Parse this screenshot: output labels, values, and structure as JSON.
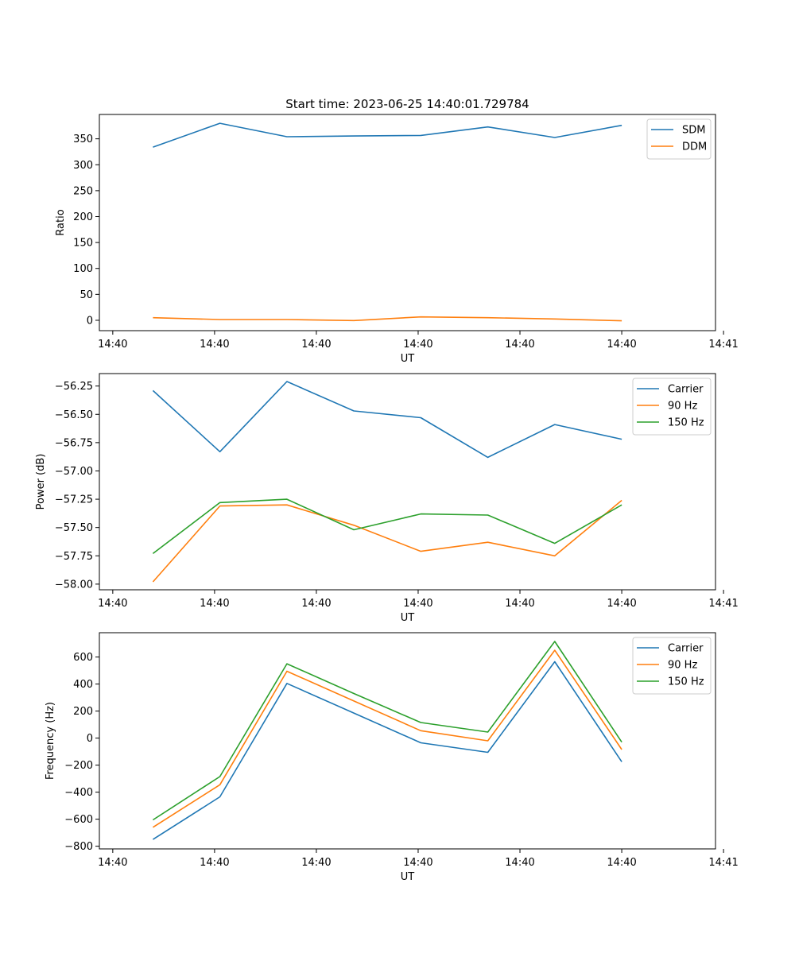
{
  "colors": {
    "blue": "#1f77b4",
    "orange": "#ff7f0e",
    "green": "#2ca02c"
  },
  "chart_data": [
    {
      "type": "line",
      "title": "Start time: 2023-06-25 14:40:01.729784",
      "xlabel": "UT",
      "ylabel": "Ratio",
      "x": [
        0.7,
        1.2,
        1.7,
        2.2,
        2.7,
        3.2,
        3.7,
        4.2
      ],
      "xlim": [
        0.3,
        4.9
      ],
      "xticks": [
        0.4,
        1.16,
        1.92,
        2.68,
        3.44,
        4.2,
        4.96
      ],
      "xtick_labels": [
        "14:40",
        "14:40",
        "14:40",
        "14:40",
        "14:40",
        "14:40",
        "14:41"
      ],
      "ylim": [
        -20,
        397
      ],
      "yticks": [
        0,
        50,
        100,
        150,
        200,
        250,
        300,
        350
      ],
      "legend_position": "top-right",
      "grid": false,
      "series": [
        {
          "name": "SDM",
          "color": "#1f77b4",
          "values": [
            334,
            380,
            354,
            355.5,
            356.5,
            373,
            352.5,
            376
          ]
        },
        {
          "name": "DDM",
          "color": "#ff7f0e",
          "values": [
            5,
            1.5,
            1.5,
            -0.5,
            6.5,
            5,
            2.5,
            -1
          ]
        }
      ]
    },
    {
      "type": "line",
      "title": "",
      "xlabel": "UT",
      "ylabel": "Power (dB)",
      "x": [
        0.7,
        1.2,
        1.7,
        2.2,
        2.7,
        3.2,
        3.7,
        4.2
      ],
      "xlim": [
        0.3,
        4.9
      ],
      "xticks": [
        0.4,
        1.16,
        1.92,
        2.68,
        3.44,
        4.2,
        4.96
      ],
      "xtick_labels": [
        "14:40",
        "14:40",
        "14:40",
        "14:40",
        "14:40",
        "14:40",
        "14:41"
      ],
      "ylim": [
        -58.05,
        -56.14
      ],
      "yticks": [
        -58.0,
        -57.75,
        -57.5,
        -57.25,
        -57.0,
        -56.75,
        -56.5,
        -56.25
      ],
      "ytick_labels": [
        "−58.00",
        "−57.75",
        "−57.50",
        "−57.25",
        "−57.00",
        "−56.75",
        "−56.50",
        "−56.25"
      ],
      "legend_position": "top-right",
      "grid": false,
      "series": [
        {
          "name": "Carrier",
          "color": "#1f77b4",
          "values": [
            -56.29,
            -56.83,
            -56.21,
            -56.47,
            -56.53,
            -56.88,
            -56.59,
            -56.72
          ]
        },
        {
          "name": "90 Hz",
          "color": "#ff7f0e",
          "values": [
            -57.98,
            -57.31,
            -57.3,
            -57.48,
            -57.71,
            -57.63,
            -57.75,
            -57.26
          ]
        },
        {
          "name": "150 Hz",
          "color": "#2ca02c",
          "values": [
            -57.73,
            -57.28,
            -57.25,
            -57.52,
            -57.38,
            -57.39,
            -57.64,
            -57.3
          ]
        }
      ]
    },
    {
      "type": "line",
      "title": "",
      "xlabel": "UT",
      "ylabel": "Frequency (Hz)",
      "x": [
        0.7,
        1.2,
        1.7,
        2.2,
        2.7,
        3.2,
        3.7,
        4.2
      ],
      "xlim": [
        0.3,
        4.9
      ],
      "xticks": [
        0.4,
        1.16,
        1.92,
        2.68,
        3.44,
        4.2,
        4.96
      ],
      "xtick_labels": [
        "14:40",
        "14:40",
        "14:40",
        "14:40",
        "14:40",
        "14:40",
        "14:41"
      ],
      "ylim": [
        -820,
        780
      ],
      "yticks": [
        -800,
        -600,
        -400,
        -200,
        0,
        200,
        400,
        600
      ],
      "ytick_labels": [
        "−800",
        "−600",
        "−400",
        "−200",
        "0",
        "200",
        "400",
        "600"
      ],
      "legend_position": "top-right",
      "grid": false,
      "series": [
        {
          "name": "Carrier",
          "color": "#1f77b4",
          "values": [
            -750,
            -435,
            405,
            185,
            -35,
            -105,
            565,
            -175
          ]
        },
        {
          "name": "90 Hz",
          "color": "#ff7f0e",
          "values": [
            -660,
            -345,
            495,
            275,
            55,
            -20,
            650,
            -85
          ]
        },
        {
          "name": "150 Hz",
          "color": "#2ca02c",
          "values": [
            -605,
            -285,
            550,
            330,
            115,
            45,
            715,
            -30
          ]
        }
      ]
    }
  ]
}
